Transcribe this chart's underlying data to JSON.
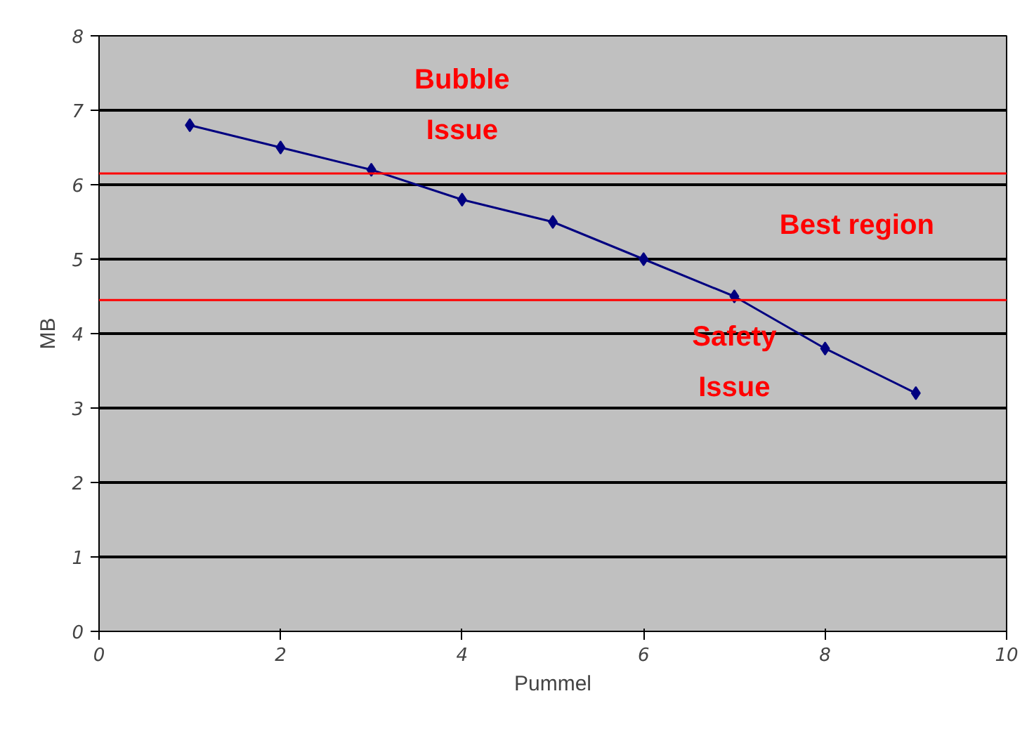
{
  "chart_data": {
    "type": "line",
    "xlabel": "Pummel",
    "ylabel": "MB",
    "x": [
      1,
      2,
      3,
      4,
      5,
      6,
      7,
      8,
      9
    ],
    "series": [
      {
        "color": "#000080",
        "values": [
          6.8,
          6.5,
          6.2,
          5.8,
          5.5,
          5.0,
          4.5,
          3.8,
          3.2
        ]
      }
    ],
    "xlim": [
      0,
      10
    ],
    "xticks": [
      0,
      2,
      4,
      6,
      8,
      10
    ],
    "ylim": [
      0,
      8
    ],
    "yticks": [
      0,
      1,
      2,
      3,
      4,
      5,
      6,
      7,
      8
    ],
    "ref_lines": [
      {
        "axis": "y",
        "value": 6.15,
        "color": "#ff0000"
      },
      {
        "axis": "y",
        "value": 4.45,
        "color": "#ff0000"
      }
    ],
    "annotations": [
      "Bubble\nIssue",
      "Best region",
      "Safety\nIssue"
    ],
    "grid": "y",
    "marker": "diamond",
    "line_style": "solid"
  }
}
